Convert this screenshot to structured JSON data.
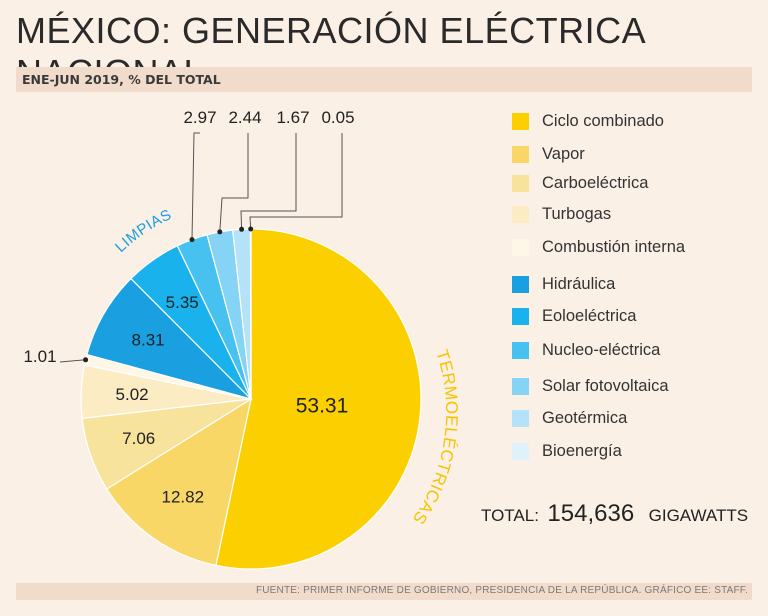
{
  "title": "MÉXICO: GENERACIÓN ELÉCTRICA NACIONAL",
  "subtitle": "ENE-JUN 2019, % DEL TOTAL",
  "source": "FUENTE: PRIMER INFORME DE GOBIERNO, PRESIDENCIA DE LA REPÚBLICA. GRÁFICO EE: STAFF.",
  "total": {
    "label": "TOTAL:",
    "value": "154,636",
    "unit": "GIGAWATTS"
  },
  "group_labels": {
    "termo": "TERMOELÉCTRICAS",
    "limpias": "LIMPIAS"
  },
  "colors": {
    "ciclo": "#fcd000",
    "vapor": "#f8d767",
    "carbo": "#f8e39c",
    "turbo": "#fbecc3",
    "combustion": "#fef7e8",
    "hidraulica": "#1a9fe0",
    "eolo": "#1ab2ec",
    "nucleo": "#46c1f0",
    "solar": "#85d3f5",
    "geo": "#b4e2f8",
    "bio": "#dff1fb"
  },
  "chart_data": {
    "type": "pie",
    "title": "MÉXICO: GENERACIÓN ELÉCTRICA NACIONAL",
    "subtitle": "ENE-JUN 2019, % DEL TOTAL",
    "slices": [
      {
        "name": "Ciclo combinado",
        "value": 53.31,
        "label": "53.31",
        "color": "#fcd000"
      },
      {
        "name": "Vapor",
        "value": 12.82,
        "label": "12.82",
        "color": "#f8d767"
      },
      {
        "name": "Carboeléctrica",
        "value": 7.06,
        "label": "7.06",
        "color": "#f8e39c"
      },
      {
        "name": "Turbogas",
        "value": 5.02,
        "label": "5.02",
        "color": "#fbecc3"
      },
      {
        "name": "Combustión interna",
        "value": 1.01,
        "label": "1.01",
        "color": "#fef7e8"
      },
      {
        "name": "Hidráulica",
        "value": 8.31,
        "label": "8.31",
        "color": "#1a9fe0"
      },
      {
        "name": "Eoloeléctrica",
        "value": 5.35,
        "label": "5.35",
        "color": "#1ab2ec"
      },
      {
        "name": "Nucleo-eléctrica",
        "value": 2.97,
        "label": "2.97",
        "color": "#46c1f0"
      },
      {
        "name": "Solar fotovoltaica",
        "value": 2.44,
        "label": "2.44",
        "color": "#85d3f5"
      },
      {
        "name": "Geotérmica",
        "value": 1.67,
        "label": "1.67",
        "color": "#b4e2f8"
      },
      {
        "name": "Bioenergía",
        "value": 0.05,
        "label": "0.05",
        "color": "#dff1fb"
      }
    ],
    "groups": [
      {
        "name": "TERMOELÉCTRICAS",
        "members": [
          "Ciclo combinado",
          "Vapor",
          "Carboeléctrica",
          "Turbogas",
          "Combustión interna"
        ]
      },
      {
        "name": "LIMPIAS",
        "members": [
          "Hidráulica",
          "Eoloeléctrica",
          "Nucleo-eléctrica",
          "Solar fotovoltaica",
          "Geotérmica",
          "Bioenergía"
        ]
      }
    ],
    "legend": [
      "Ciclo combinado",
      "Vapor",
      "Carboeléctrica",
      "Turbogas",
      "Combustión interna",
      "Hidráulica",
      "Eoloeléctrica",
      "Nucleo-eléctrica",
      "Solar fotovoltaica",
      "Geotérmica",
      "Bioenergía"
    ],
    "legend_position": "right"
  }
}
